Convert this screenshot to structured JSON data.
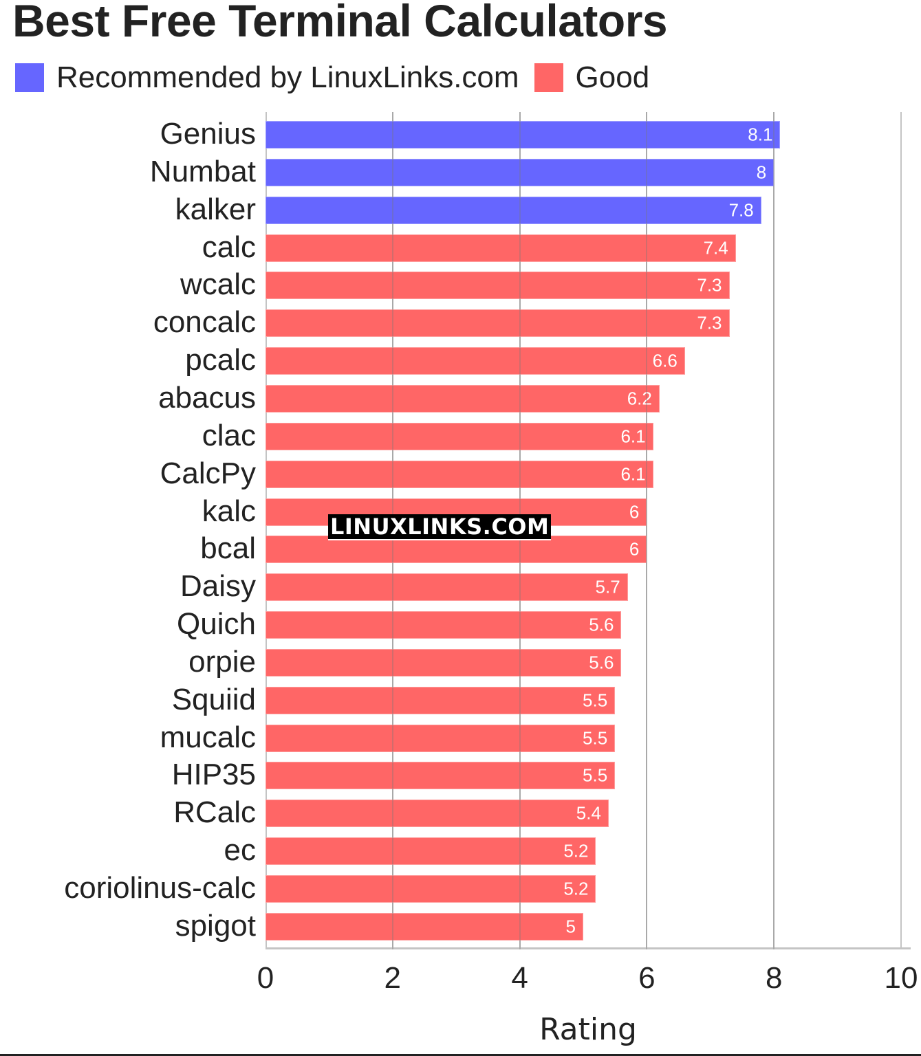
{
  "title": "Best Free Terminal Calculators",
  "legend": [
    {
      "label": "Recommended by LinuxLinks.com",
      "color": "#6666ff"
    },
    {
      "label": "Good",
      "color": "#ff6666"
    }
  ],
  "watermark": "LINUXLINKS.COM",
  "colors": {
    "recommended": "#6666ff",
    "good": "#ff6666",
    "grid": "#c4c4c4",
    "text": "#222222"
  },
  "chart_data": {
    "type": "bar",
    "orientation": "horizontal",
    "title": "Best Free Terminal Calculators",
    "xlabel": "Rating",
    "ylabel": "",
    "xlim": [
      0,
      10
    ],
    "xticks": [
      "0",
      "2",
      "4",
      "6",
      "8",
      "10"
    ],
    "grid": true,
    "legend_position": "top-left",
    "categories": [
      "Genius",
      "Numbat",
      "kalker",
      "calc",
      "wcalc",
      "concalc",
      "pcalc",
      "abacus",
      "clac",
      "CalcPy",
      "kalc",
      "bcal",
      "Daisy",
      "Quich",
      "orpie",
      "Squiid",
      "mucalc",
      "HIP35",
      "RCalc",
      "ec",
      "coriolinus-calc",
      "spigot"
    ],
    "values": [
      8.1,
      8,
      7.8,
      7.4,
      7.3,
      7.3,
      6.6,
      6.2,
      6.1,
      6.1,
      6,
      6,
      5.7,
      5.6,
      5.6,
      5.5,
      5.5,
      5.5,
      5.4,
      5.2,
      5.2,
      5
    ],
    "value_labels": [
      "8.1",
      "8",
      "7.8",
      "7.4",
      "7.3",
      "7.3",
      "6.6",
      "6.2",
      "6.1",
      "6.1",
      "6",
      "6",
      "5.7",
      "5.6",
      "5.6",
      "5.5",
      "5.5",
      "5.5",
      "5.4",
      "5.2",
      "5.2",
      "5"
    ],
    "series_group": [
      "Recommended by LinuxLinks.com",
      "Recommended by LinuxLinks.com",
      "Recommended by LinuxLinks.com",
      "Good",
      "Good",
      "Good",
      "Good",
      "Good",
      "Good",
      "Good",
      "Good",
      "Good",
      "Good",
      "Good",
      "Good",
      "Good",
      "Good",
      "Good",
      "Good",
      "Good",
      "Good",
      "Good"
    ]
  }
}
